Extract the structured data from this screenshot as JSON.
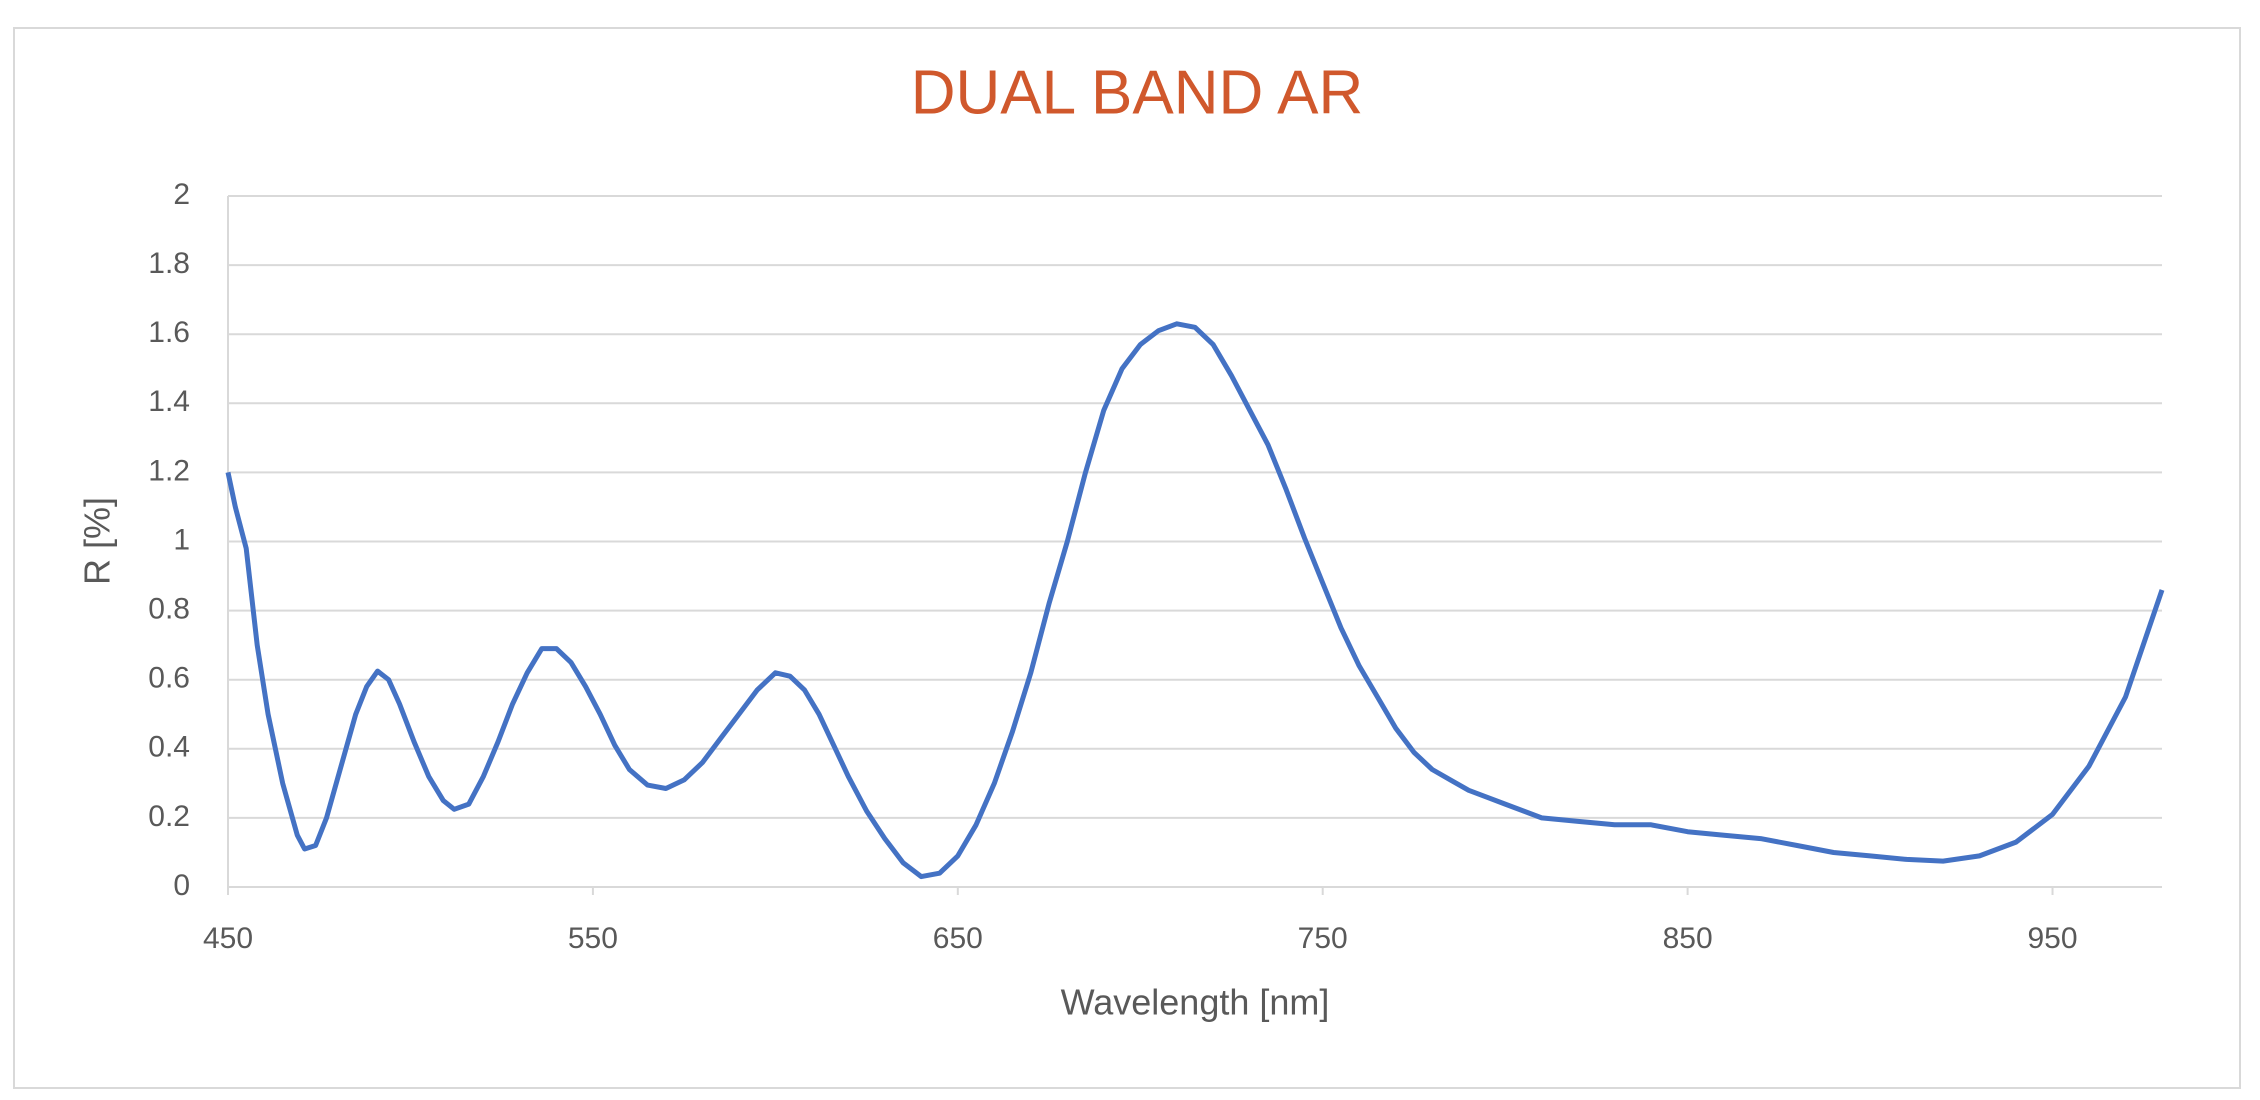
{
  "chart_data": {
    "type": "line",
    "title": "DUAL BAND AR",
    "xlabel": "Wavelength [nm]",
    "ylabel": "R [%]",
    "x": [
      450,
      452,
      455,
      458,
      461,
      465,
      469,
      471,
      474,
      477,
      481,
      485,
      488,
      491,
      494,
      497,
      501,
      505,
      509,
      512,
      516,
      520,
      524,
      528,
      532,
      536,
      540,
      544,
      548,
      552,
      556,
      560,
      565,
      570,
      575,
      580,
      585,
      590,
      595,
      600,
      604,
      608,
      612,
      616,
      620,
      625,
      630,
      635,
      640,
      645,
      650,
      655,
      660,
      665,
      670,
      675,
      680,
      685,
      690,
      695,
      700,
      705,
      710,
      715,
      720,
      725,
      730,
      735,
      740,
      745,
      750,
      755,
      760,
      765,
      770,
      775,
      780,
      785,
      790,
      795,
      800,
      810,
      820,
      830,
      840,
      850,
      860,
      870,
      880,
      890,
      900,
      910,
      920,
      930,
      940,
      950,
      960,
      970,
      980
    ],
    "series": [
      {
        "name": "R",
        "color": "#4472c4",
        "values": [
          1.2,
          1.1,
          0.98,
          0.7,
          0.5,
          0.3,
          0.15,
          0.11,
          0.12,
          0.2,
          0.35,
          0.5,
          0.58,
          0.625,
          0.6,
          0.53,
          0.42,
          0.32,
          0.25,
          0.225,
          0.24,
          0.32,
          0.42,
          0.53,
          0.62,
          0.69,
          0.69,
          0.65,
          0.58,
          0.5,
          0.41,
          0.34,
          0.295,
          0.285,
          0.31,
          0.36,
          0.43,
          0.5,
          0.57,
          0.62,
          0.61,
          0.57,
          0.5,
          0.41,
          0.32,
          0.22,
          0.14,
          0.07,
          0.03,
          0.04,
          0.09,
          0.18,
          0.3,
          0.45,
          0.62,
          0.82,
          1.0,
          1.2,
          1.38,
          1.5,
          1.57,
          1.61,
          1.63,
          1.62,
          1.57,
          1.48,
          1.38,
          1.28,
          1.15,
          1.01,
          0.88,
          0.75,
          0.64,
          0.55,
          0.46,
          0.39,
          0.34,
          0.31,
          0.28,
          0.26,
          0.24,
          0.2,
          0.19,
          0.18,
          0.18,
          0.16,
          0.15,
          0.14,
          0.12,
          0.1,
          0.09,
          0.08,
          0.075,
          0.09,
          0.13,
          0.21,
          0.35,
          0.55,
          0.86
        ]
      }
    ],
    "xlim": [
      450,
      980
    ],
    "xticks": [
      450,
      550,
      650,
      750,
      850,
      950
    ],
    "ylim": [
      0,
      2
    ],
    "yticks": [
      0,
      0.2,
      0.4,
      0.6,
      0.8,
      1,
      1.2,
      1.4,
      1.6,
      1.8,
      2
    ],
    "grid": true,
    "title_color": "#d0582c"
  }
}
